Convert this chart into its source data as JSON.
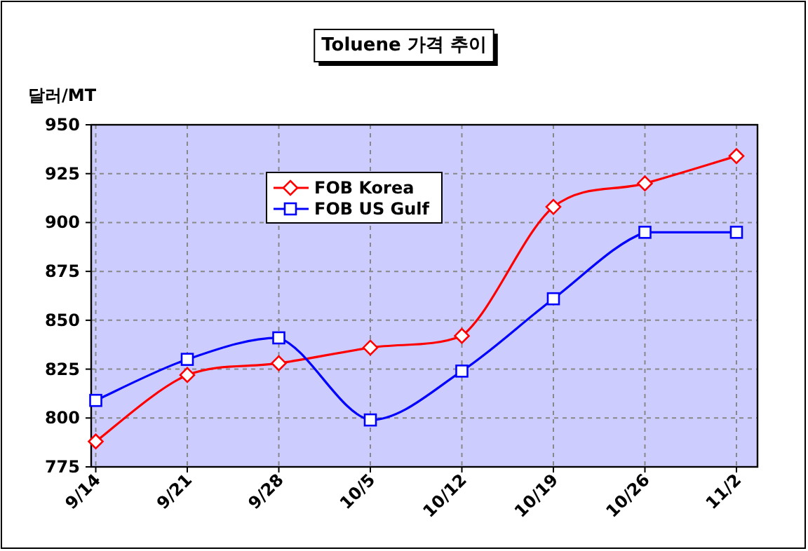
{
  "chart_data": {
    "type": "line",
    "title": "Toluene 가격 추이",
    "ylabel": "달러/MT",
    "categories": [
      "9/14",
      "9/21",
      "9/28",
      "10/5",
      "10/12",
      "10/19",
      "10/26",
      "11/2"
    ],
    "series": [
      {
        "name": "FOB Korea",
        "color": "#ff0000",
        "marker": "diamond",
        "values": [
          788,
          822,
          828,
          836,
          842,
          908,
          920,
          934
        ]
      },
      {
        "name": "FOB US Gulf",
        "color": "#0000ff",
        "marker": "square",
        "values": [
          809,
          830,
          841,
          799,
          824,
          861,
          895,
          895
        ]
      }
    ],
    "ylim": [
      775,
      950
    ],
    "yticks": [
      775,
      800,
      825,
      850,
      875,
      900,
      925,
      950
    ],
    "grid": true,
    "legend": "top left"
  }
}
